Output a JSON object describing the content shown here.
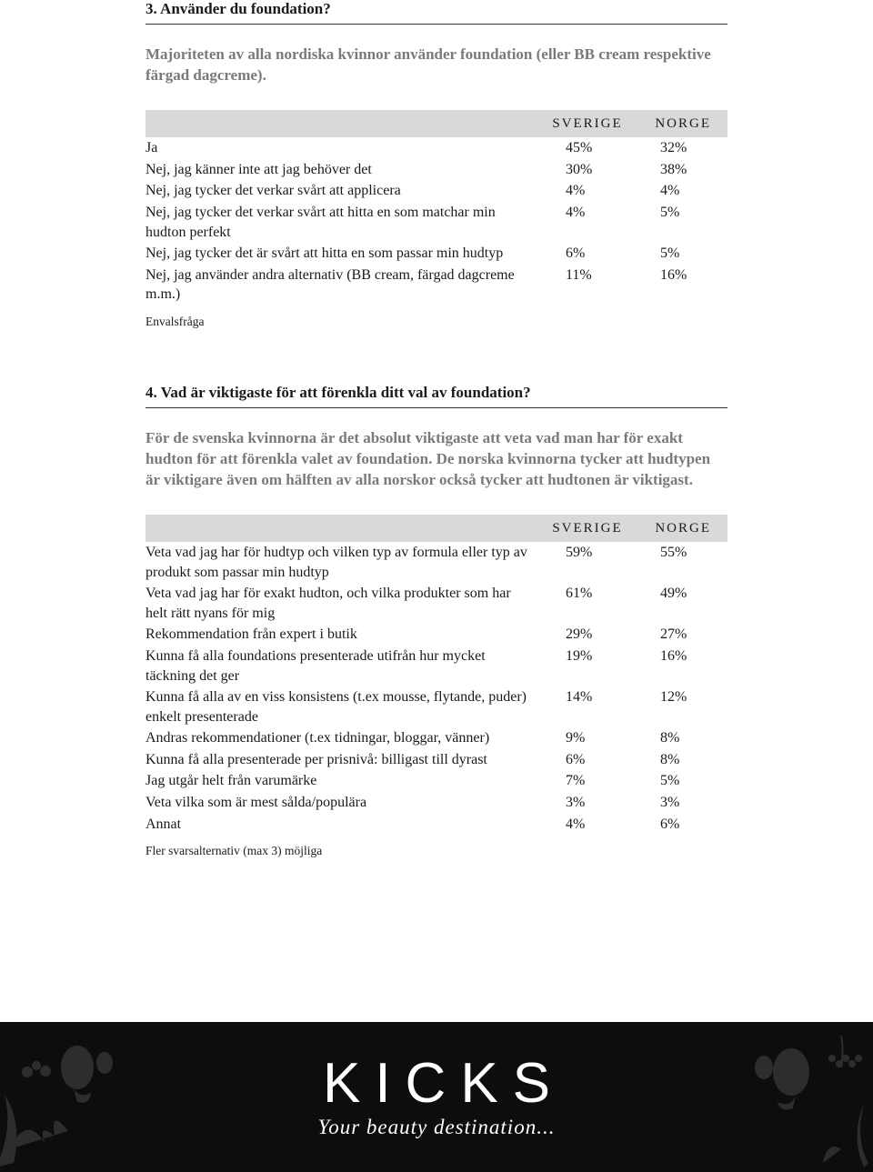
{
  "q3": {
    "title": "3. Använder du foundation?",
    "intro": "Majoriteten av alla nordiska kvinnor använder foundation (eller BB cream respektive färgad dagcreme).",
    "header_sverige": "SVERIGE",
    "header_norge": "NORGE",
    "rows": [
      {
        "label": "Ja",
        "sv": "45%",
        "no": "32%"
      },
      {
        "label": "Nej, jag känner inte att jag behöver det",
        "sv": "30%",
        "no": "38%"
      },
      {
        "label": "Nej, jag tycker det verkar svårt att applicera",
        "sv": "4%",
        "no": "4%"
      },
      {
        "label": "Nej, jag tycker det verkar svårt att hitta en som matchar min hudton perfekt",
        "sv": "4%",
        "no": "5%"
      },
      {
        "label": "Nej, jag tycker det är svårt att hitta en som passar min hudtyp",
        "sv": "6%",
        "no": "5%"
      },
      {
        "label": "Nej, jag använder andra alternativ (BB cream, färgad dagcreme m.m.)",
        "sv": "11%",
        "no": "16%"
      }
    ],
    "note": "Envalsfråga"
  },
  "q4": {
    "title": "4. Vad är viktigaste för att förenkla ditt val av foundation?",
    "intro": "För de svenska kvinnorna är det absolut viktigaste att veta vad man har för exakt hudton för att förenkla valet av foundation. De norska kvinnorna tycker att hudtypen är viktigare även om hälften av alla norskor också tycker att hudtonen är viktigast.",
    "header_sverige": "SVERIGE",
    "header_norge": "NORGE",
    "rows": [
      {
        "label": "Veta vad jag har för hudtyp och vilken typ av formula eller typ av produkt som passar min hudtyp",
        "sv": "59%",
        "no": "55%"
      },
      {
        "label": "Veta vad jag har för exakt hudton, och vilka produkter som har helt rätt nyans för mig",
        "sv": "61%",
        "no": "49%"
      },
      {
        "label": "Rekommendation från expert i butik",
        "sv": "29%",
        "no": "27%"
      },
      {
        "label": "Kunna få alla foundations presenterade utifrån hur mycket täckning det ger",
        "sv": "19%",
        "no": "16%"
      },
      {
        "label": "Kunna få alla av en viss konsistens (t.ex mousse, flytande, puder) enkelt presenterade",
        "sv": "14%",
        "no": "12%"
      },
      {
        "label": "Andras rekommendationer (t.ex tidningar, bloggar, vänner)",
        "sv": "9%",
        "no": "8%"
      },
      {
        "label": "Kunna få alla presenterade per prisnivå: billigast till dyrast",
        "sv": "6%",
        "no": "8%"
      },
      {
        "label": "Jag utgår helt från varumärke",
        "sv": "7%",
        "no": "5%"
      },
      {
        "label": "Veta vilka som är mest sålda/populära",
        "sv": "3%",
        "no": "3%"
      },
      {
        "label": "Annat",
        "sv": "4%",
        "no": "6%"
      }
    ],
    "note": "Fler svarsalternativ (max 3) möjliga"
  },
  "footer": {
    "brand": "KICKS",
    "tagline": "Your beauty destination..."
  },
  "colors": {
    "header_bg": "#d9d9d9",
    "intro_text": "#7a7a7a",
    "footer_bg": "#0d0d0d",
    "text": "#1a1a1a"
  }
}
